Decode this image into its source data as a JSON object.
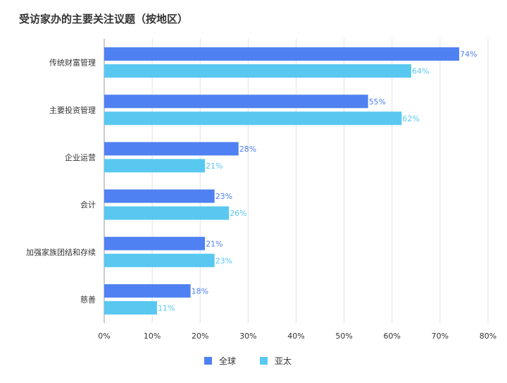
{
  "chart_data": {
    "type": "bar",
    "orientation": "horizontal",
    "title": "受访家办的主要关注议题（按地区）",
    "categories": [
      "传统财富管理",
      "主要投资管理",
      "企业运营",
      "会计",
      "加强家族团结和存续",
      "慈善"
    ],
    "series": [
      {
        "name": "全球",
        "color": "#4F81F2",
        "values": [
          74,
          55,
          28,
          23,
          21,
          18
        ],
        "labels": [
          "74%",
          "55%",
          "28%",
          "23%",
          "21%",
          "18%"
        ]
      },
      {
        "name": "亚太",
        "color": "#58C8F0",
        "values": [
          64,
          62,
          21,
          26,
          23,
          11
        ],
        "labels": [
          "64%",
          "62%",
          "21%",
          "26%",
          "23%",
          "11%"
        ]
      }
    ],
    "xlim": [
      0,
      80
    ],
    "xticks": [
      0,
      10,
      20,
      30,
      40,
      50,
      60,
      70,
      80
    ],
    "xtick_labels": [
      "0%",
      "10%",
      "20%",
      "30%",
      "40%",
      "50%",
      "60%",
      "70%",
      "80%"
    ],
    "grid": true,
    "legend_position": "bottom-center"
  }
}
